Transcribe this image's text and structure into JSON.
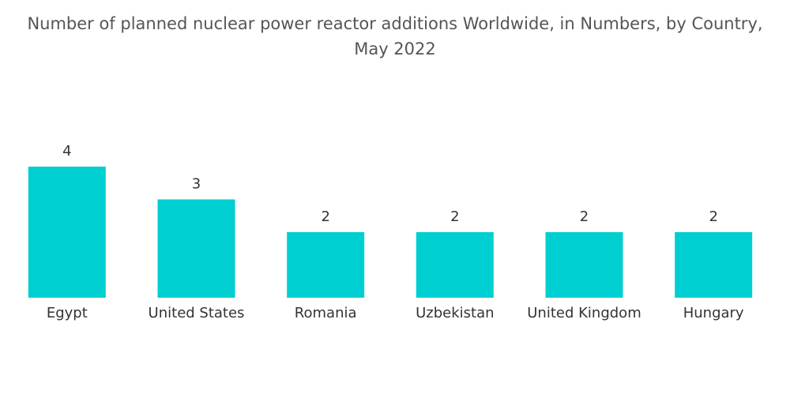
{
  "chart_data": {
    "type": "bar",
    "title": "Number of planned nuclear power reactor additions Worldwide, in Numbers, by Country, May 2022",
    "categories": [
      "Egypt",
      "United States",
      "Romania",
      "Uzbekistan",
      "United Kingdom",
      "Hungary"
    ],
    "values": [
      4,
      3,
      2,
      2,
      2,
      2
    ],
    "color": "#00cfd1"
  }
}
